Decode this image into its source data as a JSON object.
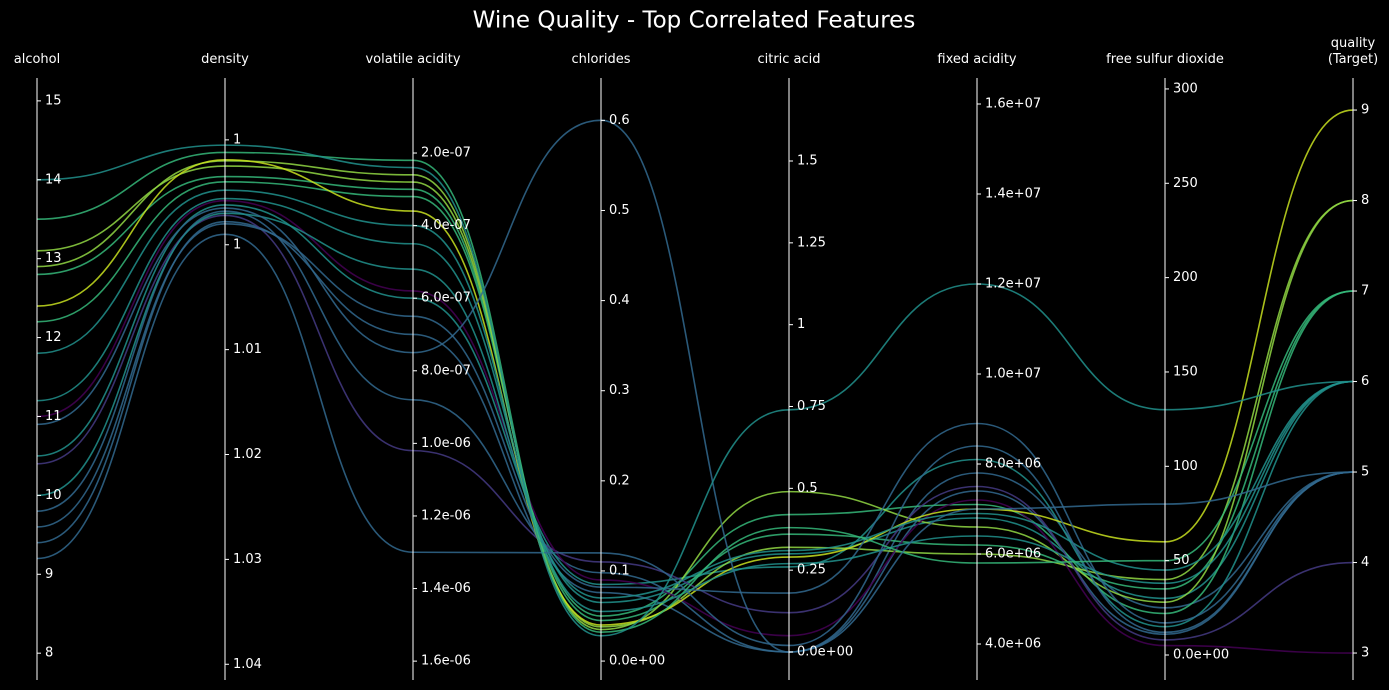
{
  "chart_data": {
    "type": "parallel",
    "title": "Wine Quality - Top Correlated Features",
    "axes": [
      {
        "name": "alcohol",
        "ylim": [
          7.66,
          15.29
        ],
        "yticks": [
          8,
          9,
          10,
          11,
          12,
          13,
          14,
          15
        ]
      },
      {
        "name": "density",
        "ylim": [
          1.0415,
          0.9841
        ],
        "yticks": [
          {
            "value": 0.99,
            "label": "1"
          },
          1,
          1.01,
          1.02,
          1.03,
          1.04
        ]
      },
      {
        "name": "volatile acidity",
        "ylim": [
          1.652e-06,
          -6.7e-09
        ],
        "yticks": [
          {
            "value": 2e-07,
            "label": "2.0e-07"
          },
          {
            "value": 4e-07,
            "label": "4.0e-07"
          },
          {
            "value": 6e-07,
            "label": "6.0e-07"
          },
          {
            "value": 8e-07,
            "label": "8.0e-07"
          },
          {
            "value": 1e-06,
            "label": "1.0e-06"
          },
          {
            "value": 1.2e-06,
            "label": "1.2e-06"
          },
          {
            "value": 1.4e-06,
            "label": "1.4e-06"
          },
          {
            "value": 1.6e-06,
            "label": "1.6e-06"
          }
        ]
      },
      {
        "name": "chlorides",
        "ylim": [
          -0.021,
          0.647
        ],
        "yticks": [
          {
            "value": 0,
            "label": "0.0e+00"
          },
          0.1,
          0.2,
          0.3,
          0.4,
          0.5,
          0.6
        ]
      },
      {
        "name": "citric acid",
        "ylim": [
          -0.0855,
          1.7536
        ],
        "yticks": [
          {
            "value": 0,
            "label": "0.0e+00"
          },
          0.25,
          0.5,
          0.75,
          1,
          1.25,
          1.5
        ]
      },
      {
        "name": "fixed acidity",
        "ylim": [
          3200000.0,
          16578000.0
        ],
        "yticks": [
          {
            "value": 4000000.0,
            "label": "4.0e+06"
          },
          {
            "value": 6000000.0,
            "label": "6.0e+06"
          },
          {
            "value": 8000000.0,
            "label": "8.0e+06"
          },
          {
            "value": 10000000.0,
            "label": "1.0e+07"
          },
          {
            "value": 12000000.0,
            "label": "1.2e+07"
          },
          {
            "value": 14000000.0,
            "label": "1.4e+07"
          },
          {
            "value": 16000000.0,
            "label": "1.6e+07"
          }
        ]
      },
      {
        "name": "free sulfur dioxide",
        "ylim": [
          -13.25,
          305.8
        ],
        "yticks": [
          {
            "value": 0,
            "label": "0.0e+00"
          },
          50,
          100,
          150,
          200,
          250,
          300
        ]
      },
      {
        "name": "quality\n(Target)",
        "ylim": [
          2.702,
          9.354
        ],
        "yticks": [
          3,
          4,
          5,
          6,
          7,
          8,
          9
        ]
      }
    ],
    "lines": [
      {
        "color": "#31688e",
        "values": [
          9.4,
          0.9978,
          7e-07,
          0.076,
          0.0,
          7400000.0,
          11,
          5
        ]
      },
      {
        "color": "#31688e",
        "values": [
          9.8,
          0.9968,
          8.8e-07,
          0.098,
          0.0,
          7800000.0,
          25,
          5
        ]
      },
      {
        "color": "#21918c",
        "values": [
          10.5,
          0.9962,
          6e-07,
          0.085,
          0.26,
          8100000.0,
          15,
          6
        ]
      },
      {
        "color": "#21918c",
        "values": [
          11.2,
          0.9956,
          4.5e-07,
          0.065,
          0.3,
          6800000.0,
          30,
          6
        ]
      },
      {
        "color": "#35b779",
        "values": [
          12.8,
          0.9935,
          3e-07,
          0.045,
          0.36,
          6200000.0,
          35,
          7
        ]
      },
      {
        "color": "#35b779",
        "values": [
          12.2,
          0.994,
          3.2e-07,
          0.05,
          0.42,
          7100000.0,
          22,
          7
        ]
      },
      {
        "color": "#90d743",
        "values": [
          13.1,
          0.9925,
          2.8e-07,
          0.038,
          0.32,
          6000000.0,
          40,
          8
        ]
      },
      {
        "color": "#90d743",
        "values": [
          12.9,
          0.992,
          2.6e-07,
          0.035,
          0.49,
          6600000.0,
          28,
          8
        ]
      },
      {
        "color": "#443983",
        "values": [
          10.4,
          0.9972,
          1.02e-06,
          0.11,
          0.12,
          7500000.0,
          8,
          4
        ]
      },
      {
        "color": "#440154",
        "values": [
          11.0,
          0.9958,
          5.8e-07,
          0.09,
          0.05,
          7200000.0,
          5,
          3
        ]
      },
      {
        "color": "#c8e020",
        "values": [
          12.4,
          0.9919,
          3.6e-07,
          0.04,
          0.29,
          7000000.0,
          60,
          9
        ]
      },
      {
        "color": "#31688e",
        "values": [
          9.6,
          0.998,
          6.5e-07,
          0.082,
          0.18,
          8900000.0,
          17,
          5
        ]
      },
      {
        "color": "#21918c",
        "values": [
          10.0,
          0.997,
          5.2e-07,
          0.07,
          0.31,
          6900000.0,
          45,
          6
        ]
      },
      {
        "color": "#21918c",
        "values": [
          11.8,
          0.9948,
          4e-07,
          0.055,
          0.27,
          6400000.0,
          38,
          6
        ]
      },
      {
        "color": "#31688e",
        "values": [
          9.2,
          0.999,
          1.3e-06,
          0.12,
          0.02,
          8400000.0,
          12,
          5
        ]
      },
      {
        "color": "#35b779",
        "values": [
          13.5,
          0.9912,
          2.2e-07,
          0.032,
          0.38,
          5800000.0,
          50,
          7
        ]
      },
      {
        "color": "#31688e",
        "values": [
          10.9,
          0.9965,
          7.5e-07,
          0.6,
          0.0,
          7000000.0,
          80,
          5
        ]
      },
      {
        "color": "#21918c",
        "values": [
          14.0,
          0.9905,
          2.4e-07,
          0.028,
          0.74,
          12000000.0,
          130,
          6
        ]
      }
    ]
  }
}
